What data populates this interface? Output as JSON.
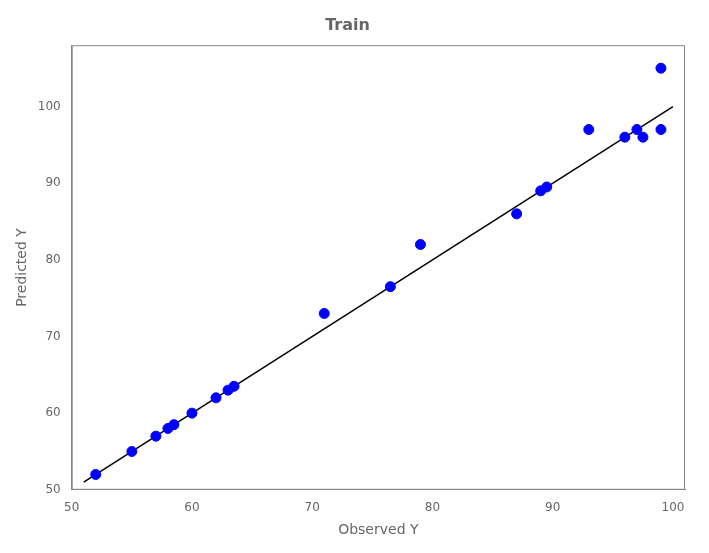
{
  "chart_data": {
    "type": "scatter",
    "title": "Train",
    "xlabel": "Observed Y",
    "ylabel": "Predicted Y",
    "xlim": [
      50,
      101
    ],
    "ylim": [
      50,
      108
    ],
    "xticks": [
      50,
      60,
      70,
      80,
      90,
      100
    ],
    "yticks": [
      50,
      60,
      70,
      80,
      90,
      100
    ],
    "grid": false,
    "series": [
      {
        "type": "line",
        "color": "#000000",
        "x": [
          51,
          100
        ],
        "values": [
          51,
          100
        ]
      },
      {
        "type": "scatter",
        "color": "#0000FF",
        "x": [
          52,
          55,
          57,
          58,
          58.5,
          60,
          62,
          63,
          63.5,
          71,
          76.5,
          79,
          87,
          89,
          89.5,
          93,
          96,
          97,
          97.5,
          99
        ],
        "values": [
          52,
          55,
          57,
          58,
          58.5,
          60,
          62,
          63,
          63.5,
          73,
          76.5,
          82,
          86,
          89,
          89.5,
          97,
          96,
          97,
          96,
          97
        ]
      },
      {
        "type": "scatter",
        "color": "#0000FF",
        "x": [
          99
        ],
        "values": [
          105
        ]
      }
    ]
  }
}
